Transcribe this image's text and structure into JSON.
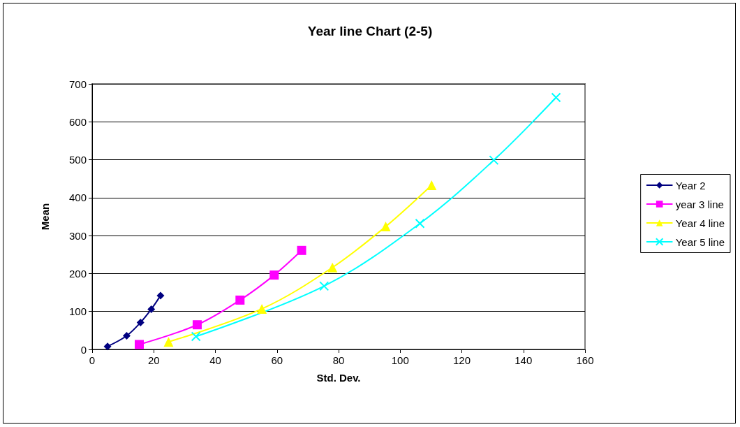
{
  "chart_data": {
    "type": "line",
    "title": "Year line Chart (2-5)",
    "xlabel": "Std. Dev.",
    "ylabel": "Mean",
    "xlim": [
      0,
      160
    ],
    "xticks": [
      0,
      20,
      40,
      60,
      80,
      100,
      120,
      140,
      160
    ],
    "ylim": [
      0,
      700
    ],
    "yticks": [
      0,
      100,
      200,
      300,
      400,
      500,
      600,
      700
    ],
    "grid": "y",
    "legend": "right",
    "series": [
      {
        "name": "Year 2",
        "color": "#000080",
        "marker": "diamond",
        "x": [
          5.0,
          11.2,
          15.7,
          19.2,
          22.2
        ],
        "values": [
          8,
          36,
          71,
          106,
          142
        ]
      },
      {
        "name": "year 3 line",
        "color": "#ff00ff",
        "marker": "square",
        "x": [
          15.3,
          34.1,
          48.0,
          59.1,
          68.0
        ],
        "values": [
          13,
          65,
          130,
          196,
          261
        ]
      },
      {
        "name": "Year 4 line",
        "color": "#ffff00",
        "marker": "triangle",
        "x": [
          24.8,
          55.1,
          78.0,
          95.3,
          110.2
        ],
        "values": [
          20,
          107,
          216,
          324,
          433
        ]
      },
      {
        "name": "Year 5 line",
        "color": "#00ffff",
        "marker": "cross",
        "x": [
          33.7,
          75.3,
          106.4,
          130.4,
          150.6
        ],
        "values": [
          34,
          167,
          332,
          499,
          664
        ]
      }
    ]
  }
}
